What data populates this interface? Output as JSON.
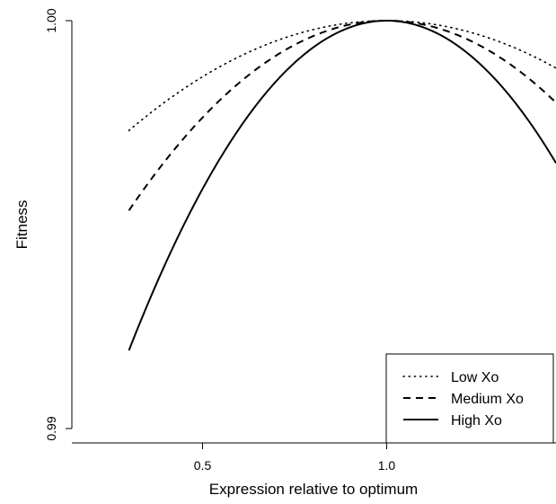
{
  "chart_data": {
    "type": "line",
    "xlabel": "Expression relative to optimum",
    "ylabel": "Fitness",
    "xlim": [
      0.145,
      1.46
    ],
    "ylim": [
      0.9896,
      1.0
    ],
    "x_ticks": [
      {
        "value": 0.5,
        "label": "0.5"
      },
      {
        "value": 1.0,
        "label": "1.0"
      }
    ],
    "y_ticks": [
      {
        "value": 0.99,
        "label": "0.99"
      },
      {
        "value": 1.0,
        "label": "1.00"
      }
    ],
    "x_range": [
      0.3,
      1.46
    ],
    "optimum": 1.0,
    "legend": {
      "position": "bottom-right"
    },
    "series": [
      {
        "name": "Low Xo",
        "style": "dotted",
        "curvature": 0.0055
      },
      {
        "name": "Medium Xo",
        "style": "dashed",
        "curvature": 0.0095
      },
      {
        "name": "High Xo",
        "style": "solid",
        "curvature": 0.0165
      }
    ]
  }
}
